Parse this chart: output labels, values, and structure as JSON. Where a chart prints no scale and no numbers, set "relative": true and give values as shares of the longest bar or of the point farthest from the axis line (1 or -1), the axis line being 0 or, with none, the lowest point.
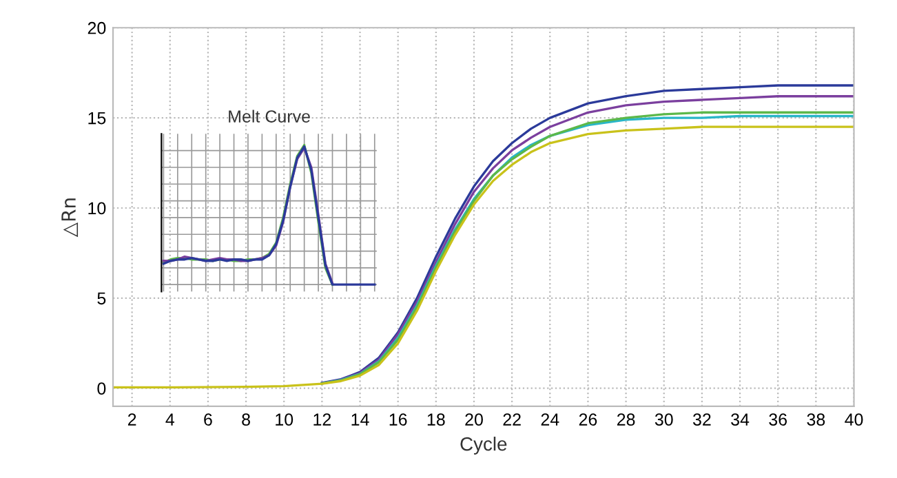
{
  "chart_data": [
    {
      "type": "line",
      "xlabel": "Cycle",
      "ylabel": "△Rn",
      "xlim": [
        1,
        40
      ],
      "ylim": [
        -1,
        20
      ],
      "xticks": [
        2,
        4,
        6,
        8,
        10,
        12,
        14,
        16,
        18,
        20,
        22,
        24,
        26,
        28,
        30,
        32,
        34,
        36,
        38,
        40
      ],
      "yticks": [
        0,
        5,
        10,
        15,
        20
      ],
      "grid": true,
      "legend": false,
      "line_style": "solid",
      "marker": "none",
      "x": [
        1,
        4,
        8,
        10,
        12,
        13,
        14,
        15,
        16,
        17,
        18,
        19,
        20,
        21,
        22,
        23,
        24,
        26,
        28,
        30,
        32,
        34,
        36,
        38,
        40
      ],
      "series": [
        {
          "color": "#2b3a9a",
          "values": [
            null,
            null,
            null,
            null,
            0.3,
            0.5,
            0.9,
            1.7,
            3.1,
            5.0,
            7.3,
            9.4,
            11.2,
            12.6,
            13.6,
            14.4,
            15.0,
            15.8,
            16.2,
            16.5,
            16.6,
            16.7,
            16.8,
            16.8,
            16.8
          ]
        },
        {
          "color": "#7b3f9e",
          "values": [
            null,
            null,
            null,
            null,
            0.28,
            0.47,
            0.85,
            1.6,
            3.0,
            4.8,
            7.0,
            9.1,
            10.9,
            12.2,
            13.2,
            13.9,
            14.5,
            15.3,
            15.7,
            15.9,
            16.0,
            16.1,
            16.2,
            16.2,
            16.2
          ]
        },
        {
          "color": "#29b6c8",
          "values": [
            null,
            null,
            null,
            null,
            0.27,
            0.45,
            0.8,
            1.5,
            2.8,
            4.6,
            6.8,
            8.8,
            10.5,
            11.8,
            12.8,
            13.5,
            14.0,
            14.6,
            14.9,
            15.0,
            15.0,
            15.1,
            15.1,
            15.1,
            15.1
          ]
        },
        {
          "color": "#5cb84a",
          "values": [
            null,
            null,
            null,
            null,
            0.26,
            0.43,
            0.78,
            1.45,
            2.7,
            4.5,
            6.7,
            8.7,
            10.4,
            11.8,
            12.7,
            13.4,
            14.0,
            14.7,
            15.0,
            15.2,
            15.3,
            15.3,
            15.3,
            15.3,
            15.3
          ]
        },
        {
          "color": "#c9c21a",
          "values": [
            0.05,
            0.05,
            0.08,
            0.12,
            0.25,
            0.4,
            0.7,
            1.3,
            2.5,
            4.3,
            6.5,
            8.5,
            10.2,
            11.5,
            12.4,
            13.1,
            13.6,
            14.1,
            14.3,
            14.4,
            14.5,
            14.5,
            14.5,
            14.5,
            14.5
          ]
        }
      ]
    },
    {
      "type": "line",
      "title": "Melt Curve",
      "relative": true,
      "tick_labels": false,
      "grid": true,
      "legend": false,
      "line_style": "solid",
      "marker": "none",
      "categories": [
        null,
        null,
        null,
        null,
        null,
        null,
        null,
        null,
        null,
        null,
        null,
        null,
        null,
        null,
        null,
        null,
        null,
        null,
        null,
        null,
        null,
        null,
        null,
        null,
        null,
        null,
        null,
        null,
        null,
        null,
        null
      ],
      "series": [
        {
          "color": "#5cb84a",
          "values": [
            0.16,
            0.18,
            0.19,
            0.19,
            0.18,
            0.18,
            0.18,
            0.17,
            0.18,
            0.18,
            0.17,
            0.17,
            0.18,
            0.18,
            0.19,
            0.22,
            0.3,
            0.48,
            0.72,
            0.92,
            1.0,
            0.8,
            0.45,
            0.12,
            0.0,
            null,
            null,
            null,
            null,
            null,
            null
          ]
        },
        {
          "color": "#7b3f9e",
          "values": [
            0.17,
            0.17,
            0.18,
            0.2,
            0.19,
            0.18,
            0.17,
            0.18,
            0.19,
            0.18,
            0.18,
            0.17,
            0.17,
            0.18,
            0.19,
            0.21,
            0.28,
            0.45,
            0.7,
            0.9,
            0.98,
            0.84,
            0.5,
            0.15,
            0.01,
            null,
            null,
            null,
            null,
            null,
            null
          ]
        },
        {
          "color": "#2b3a9a",
          "values": [
            0.15,
            0.17,
            0.18,
            0.18,
            0.19,
            0.18,
            0.17,
            0.17,
            0.18,
            0.17,
            0.18,
            0.18,
            0.17,
            0.18,
            0.18,
            0.21,
            0.29,
            0.46,
            0.7,
            0.91,
            0.99,
            0.82,
            0.48,
            0.14,
            0.0,
            0.0,
            0.0,
            0.0,
            0.0,
            0.0,
            0.0
          ]
        }
      ]
    }
  ]
}
